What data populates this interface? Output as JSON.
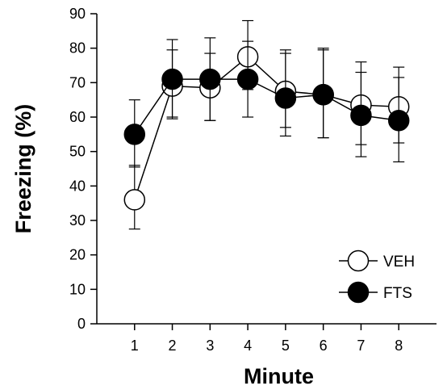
{
  "chart_data": {
    "type": "line",
    "title": "",
    "xlabel": "Minute",
    "ylabel": "Freezing (%)",
    "x": [
      1,
      2,
      3,
      4,
      5,
      6,
      7,
      8
    ],
    "xlim": [
      0,
      9
    ],
    "ylim": [
      0,
      90
    ],
    "yticks": [
      0,
      10,
      20,
      30,
      40,
      50,
      60,
      70,
      80,
      90
    ],
    "grid": false,
    "legend_position": "bottom-right",
    "series": [
      {
        "name": "VEH",
        "marker": "open-circle",
        "fill": "#ffffff",
        "values": [
          36,
          69,
          68.5,
          77.5,
          67.5,
          66.5,
          63.5,
          63
        ],
        "error_upper": [
          46,
          79.5,
          78.5,
          88,
          79.5,
          79.5,
          73,
          71.5
        ],
        "error_lower": [
          27.5,
          59.5,
          59,
          68,
          57,
          54,
          52,
          52.5
        ]
      },
      {
        "name": "FTS",
        "marker": "filled-circle",
        "fill": "#000000",
        "values": [
          55,
          71,
          71,
          71,
          65.5,
          66.5,
          60.5,
          59
        ],
        "error_upper": [
          65,
          82.5,
          83,
          82,
          78.5,
          80,
          76,
          74.5
        ],
        "error_lower": [
          45.5,
          60,
          59,
          60,
          54.5,
          54,
          48.5,
          47
        ]
      }
    ]
  }
}
